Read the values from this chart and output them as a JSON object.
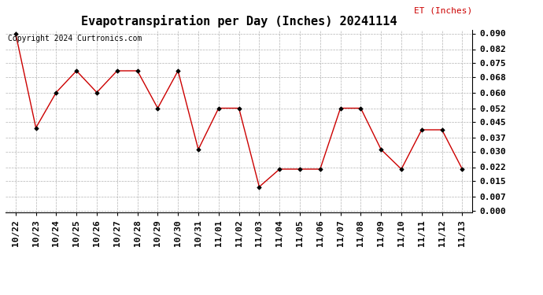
{
  "title": "Evapotranspiration per Day (Inches) 20241114",
  "copyright_text": "Copyright 2024 Curtronics.com",
  "legend_label": "ET (Inches)",
  "dates": [
    "10/22",
    "10/23",
    "10/24",
    "10/25",
    "10/26",
    "10/27",
    "10/28",
    "10/29",
    "10/30",
    "10/31",
    "11/01",
    "11/02",
    "11/03",
    "11/04",
    "11/05",
    "11/06",
    "11/07",
    "11/08",
    "11/09",
    "11/10",
    "11/11",
    "11/12",
    "11/13"
  ],
  "values": [
    0.09,
    0.042,
    0.06,
    0.071,
    0.06,
    0.071,
    0.071,
    0.052,
    0.071,
    0.031,
    0.052,
    0.052,
    0.012,
    0.021,
    0.021,
    0.021,
    0.052,
    0.052,
    0.031,
    0.021,
    0.041,
    0.041,
    0.021
  ],
  "line_color": "#cc0000",
  "marker_color": "#000000",
  "grid_color": "#aaaaaa",
  "background_color": "#ffffff",
  "ylim": [
    0.0,
    0.09
  ],
  "yticks": [
    0.0,
    0.007,
    0.015,
    0.022,
    0.03,
    0.037,
    0.045,
    0.052,
    0.06,
    0.068,
    0.075,
    0.082,
    0.09
  ],
  "title_fontsize": 11,
  "legend_fontsize": 8,
  "copyright_fontsize": 7,
  "tick_fontsize": 8
}
